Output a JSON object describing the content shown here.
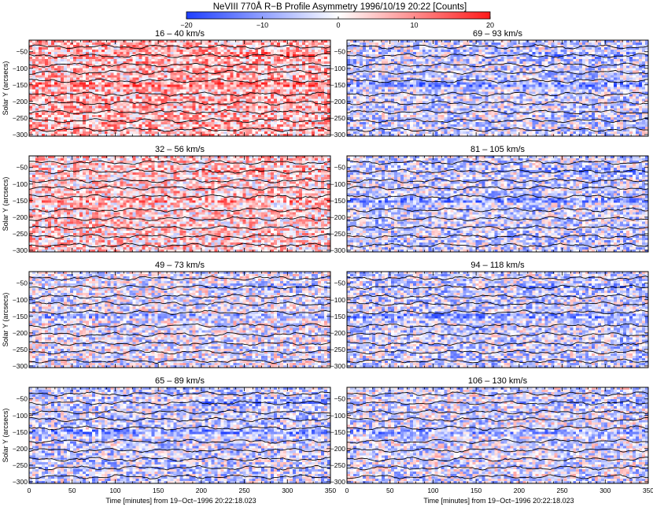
{
  "figure": {
    "title": "NeVIII 770Å R−B Profile Asymmetry 1996/10/19 20:22 [Counts]",
    "colorbar": {
      "min": -20,
      "max": 20,
      "ticks": [
        "−20",
        "−10",
        "0",
        "10",
        "20"
      ],
      "colors": {
        "negative": "#1f3fff",
        "zero": "#ffffff",
        "positive": "#ff1a1a"
      }
    },
    "xlabel": "Time [minutes] from 19−Oct−1996 20:22:18.023",
    "ylabel": "Solar Y (arcsecs)"
  },
  "chart_data": {
    "type": "heatmap",
    "xlim": [
      0,
      350
    ],
    "ylim": [
      -305,
      -15
    ],
    "x_ticks": [
      0,
      50,
      100,
      150,
      200,
      250,
      300,
      350
    ],
    "y_ticks": [
      -50,
      -100,
      -150,
      -200,
      -250,
      -300
    ],
    "x_tick_labels": [
      "0",
      "50",
      "100",
      "150",
      "200",
      "250",
      "300",
      "350"
    ],
    "y_tick_labels": [
      "−50",
      "−100",
      "−150",
      "−200",
      "−250",
      "−300"
    ],
    "contour_color": "#000000",
    "contour_bands_y": [
      -35,
      -62,
      -90,
      -112,
      -138,
      -178,
      -205,
      -232,
      -258,
      -285
    ],
    "strong_band_y": [
      -150,
      -60
    ],
    "panels": [
      {
        "title": "16 – 40 km/s",
        "column": 0,
        "row": 0,
        "mean_asymmetry": 6,
        "band_asymmetry": 14
      },
      {
        "title": "69 – 93 km/s",
        "column": 1,
        "row": 0,
        "mean_asymmetry": -4,
        "band_asymmetry": -14
      },
      {
        "title": "32 – 56 km/s",
        "column": 0,
        "row": 1,
        "mean_asymmetry": 4,
        "band_asymmetry": 10
      },
      {
        "title": "81 – 105 km/s",
        "column": 1,
        "row": 1,
        "mean_asymmetry": -4,
        "band_asymmetry": -13
      },
      {
        "title": "49 – 73 km/s",
        "column": 0,
        "row": 2,
        "mean_asymmetry": -2,
        "band_asymmetry": -10
      },
      {
        "title": "94 – 118 km/s",
        "column": 1,
        "row": 2,
        "mean_asymmetry": -4,
        "band_asymmetry": -12
      },
      {
        "title": "65 – 89 km/s",
        "column": 0,
        "row": 3,
        "mean_asymmetry": -4,
        "band_asymmetry": -14
      },
      {
        "title": "106 – 130 km/s",
        "column": 1,
        "row": 3,
        "mean_asymmetry": -3,
        "band_asymmetry": -11
      }
    ]
  }
}
